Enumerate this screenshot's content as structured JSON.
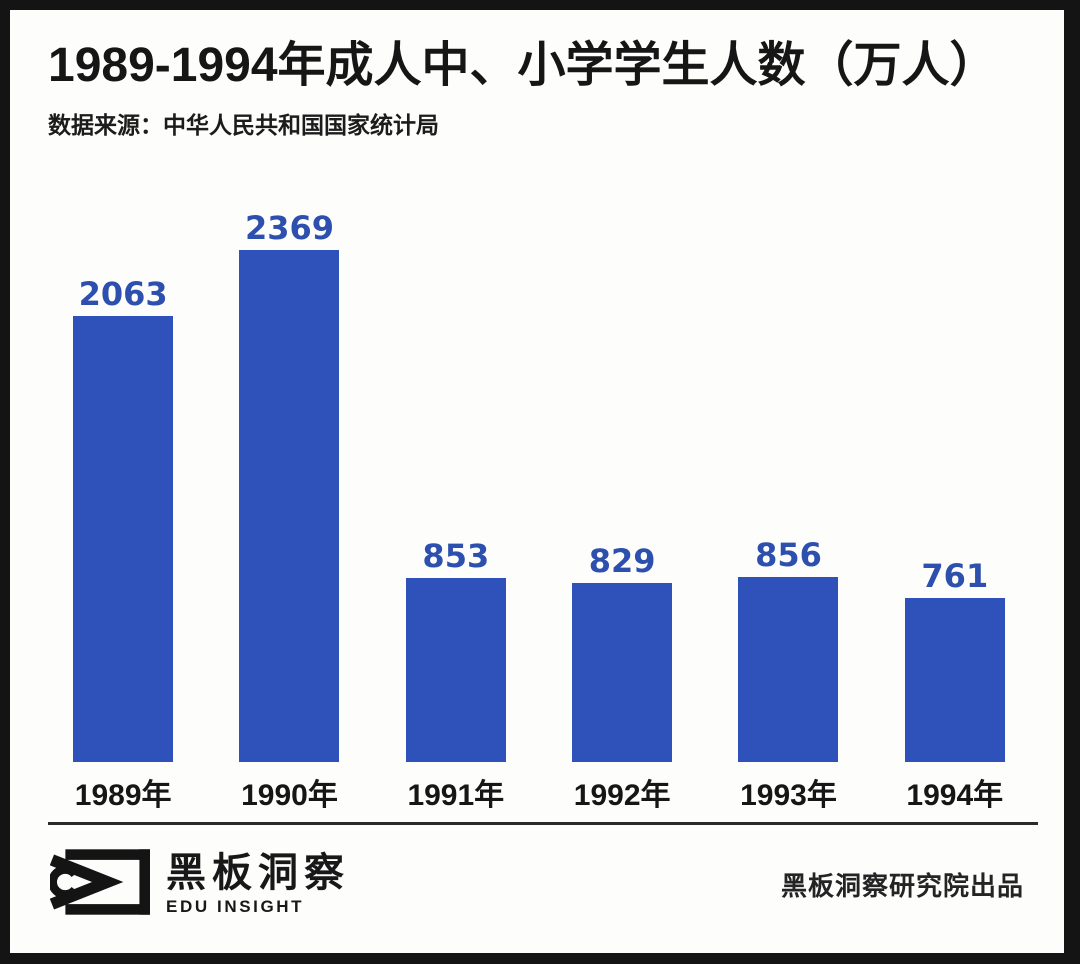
{
  "header": {
    "title": "1989-1994年成人中、小学学生人数（万人）",
    "source": "数据来源：中华人民共和国国家统计局"
  },
  "chart_data": {
    "type": "bar",
    "title": "1989-1994年成人中、小学学生人数（万人）",
    "categories": [
      "1989年",
      "1990年",
      "1991年",
      "1992年",
      "1993年",
      "1994年"
    ],
    "values": [
      2063,
      2369,
      853,
      829,
      856,
      761
    ],
    "xlabel": "",
    "ylabel": "",
    "ylim": [
      0,
      2369
    ],
    "grid": false,
    "legend": false,
    "value_labels_shown": true,
    "bar_color": "#2e52b9",
    "value_label_color": "#2d50ae"
  },
  "footer": {
    "logo_icon": "eye-chalkboard-logo",
    "logo_cn": "黑板洞察",
    "logo_en": "EDU INSIGHT",
    "credit": "黑板洞察研究院出品"
  },
  "colors": {
    "frame": "#141414",
    "background": "#fdfdfc",
    "text": "#161616",
    "bar": "#2e52b9"
  }
}
